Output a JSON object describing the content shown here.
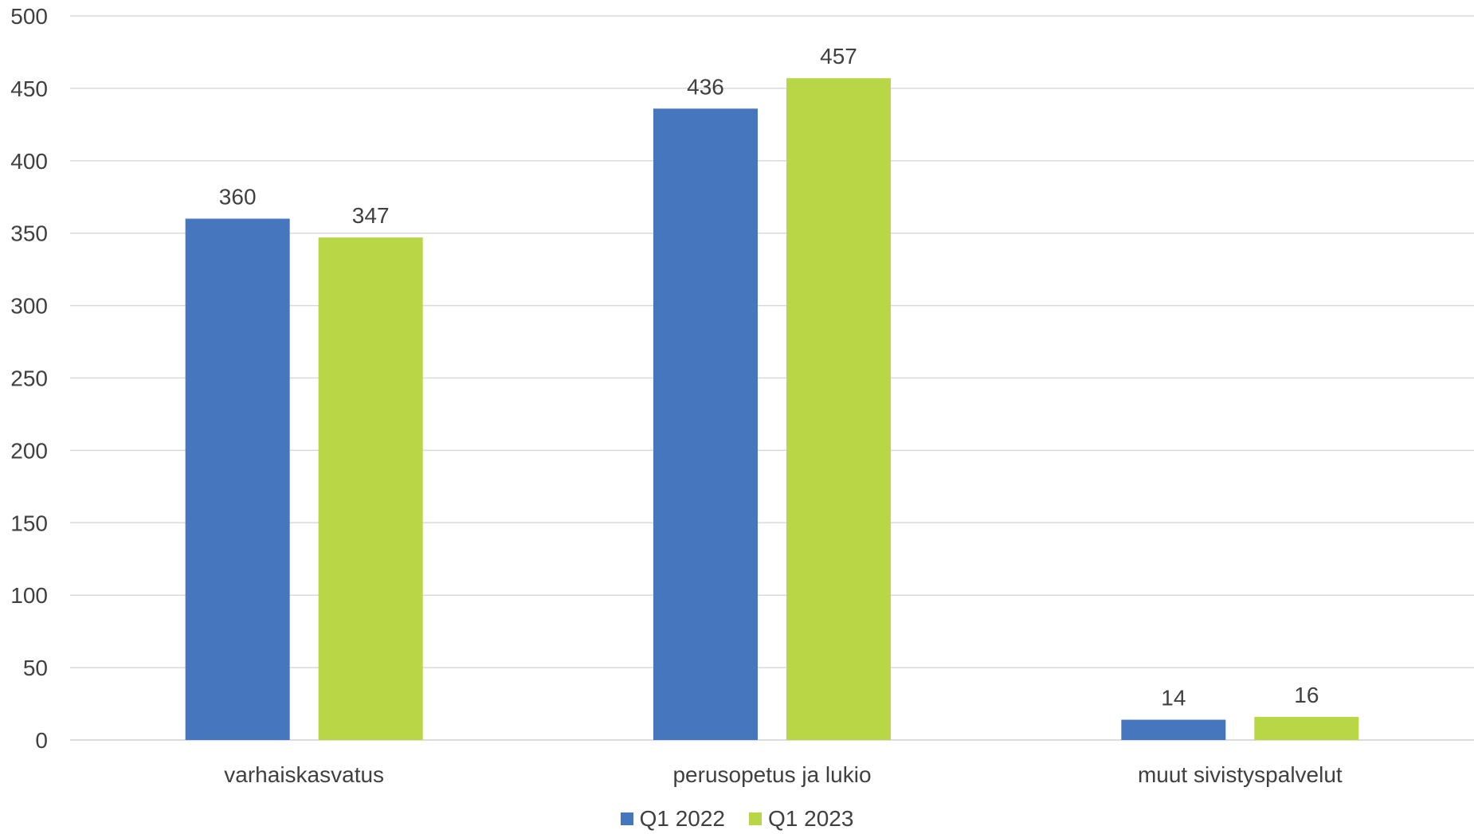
{
  "chart_data": {
    "type": "bar",
    "categories": [
      "varhaiskasvatus",
      "perusopetus ja lukio",
      "muut sivistyspalvelut"
    ],
    "series": [
      {
        "name": "Q1 2022",
        "values": [
          360,
          436,
          14
        ],
        "color": "#4677BE"
      },
      {
        "name": "Q1 2023",
        "values": [
          347,
          457,
          16
        ],
        "color": "#B8D646"
      }
    ],
    "ylim": [
      0,
      500
    ],
    "yticks": [
      0,
      50,
      100,
      150,
      200,
      250,
      300,
      350,
      400,
      450,
      500
    ],
    "grid": true,
    "legend": "bottom-center",
    "data_labels": true
  }
}
